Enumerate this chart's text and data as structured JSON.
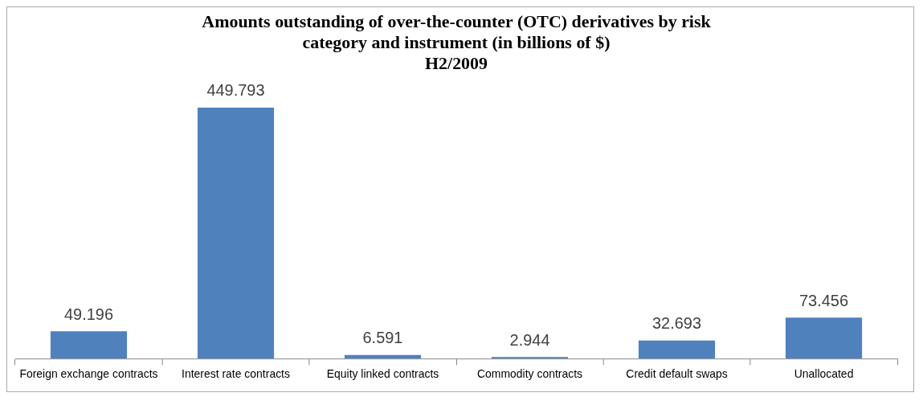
{
  "chart_data": {
    "type": "bar",
    "title": "Amounts outstanding of over-the-counter (OTC) derivatives by risk category and instrument (in billions of $)",
    "subtitle": "H2/2009",
    "categories": [
      "Foreign exchange contracts",
      "Interest rate contracts",
      "Equity linked contracts",
      "Commodity contracts",
      "Credit default swaps",
      "Unallocated"
    ],
    "values": [
      49.196,
      449.793,
      6.591,
      2.944,
      32.693,
      73.456
    ],
    "color": "#4f81bd",
    "data_labels": true,
    "grid": false,
    "legend": false,
    "tick_labels": "x"
  }
}
